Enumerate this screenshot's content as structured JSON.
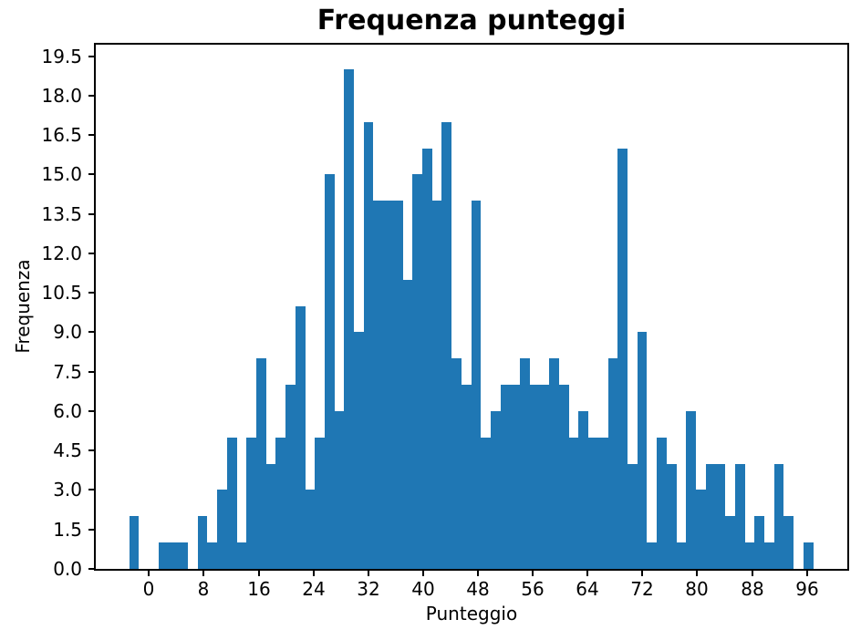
{
  "chart_data": {
    "type": "bar",
    "subtype": "histogram",
    "title": "Frequenza punteggi",
    "xlabel": "Punteggio",
    "ylabel": "Frequenza",
    "bar_color": "#1f77b4",
    "grid": false,
    "legend": null,
    "bin_start": -2.874,
    "bin_width": 1.4254,
    "frequencies": [
      2,
      0,
      0,
      1,
      1,
      1,
      0,
      2,
      1,
      3,
      5,
      1,
      5,
      8,
      4,
      5,
      7,
      10,
      3,
      5,
      15,
      6,
      19,
      9,
      17,
      14,
      14,
      14,
      11,
      15,
      16,
      14,
      17,
      8,
      7,
      14,
      5,
      6,
      7,
      7,
      8,
      7,
      7,
      8,
      7,
      5,
      6,
      5,
      5,
      8,
      16,
      4,
      9,
      1,
      5,
      4,
      1,
      6,
      3,
      4,
      4,
      2,
      4,
      1,
      2,
      1,
      4,
      2,
      0,
      1
    ],
    "xlim": [
      -7.758,
      101.89
    ],
    "ylim": [
      0,
      19.94
    ],
    "xticks": [
      0,
      8,
      16,
      24,
      32,
      40,
      48,
      56,
      64,
      72,
      80,
      88,
      96
    ],
    "yticks": [
      0.0,
      1.5,
      3.0,
      4.5,
      6.0,
      7.5,
      9.0,
      10.5,
      12.0,
      13.5,
      15.0,
      16.5,
      18.0,
      19.5
    ]
  }
}
